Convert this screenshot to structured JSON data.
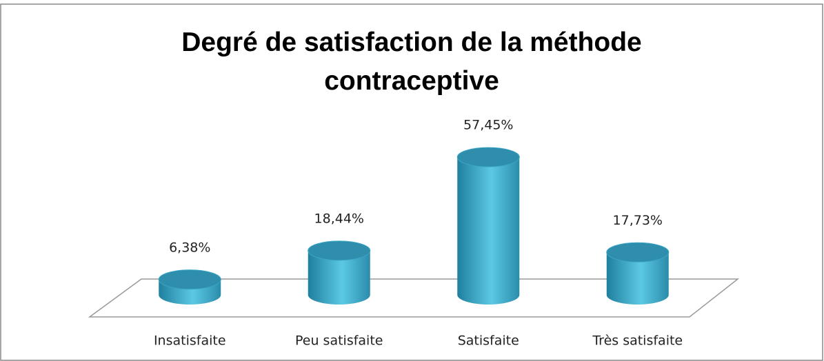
{
  "chart_data": {
    "type": "bar3d",
    "title": "Degré de satisfaction de la méthode contraceptive",
    "categories": [
      "Insatisfaite",
      "Peu satisfaite",
      "Satisfaite",
      "Très satisfaite"
    ],
    "values": [
      6.38,
      18.44,
      57.45,
      17.73
    ],
    "value_labels": [
      "6,38%",
      "18,44%",
      "57,45%",
      "17,73%"
    ],
    "color": "#3aa6c6"
  }
}
